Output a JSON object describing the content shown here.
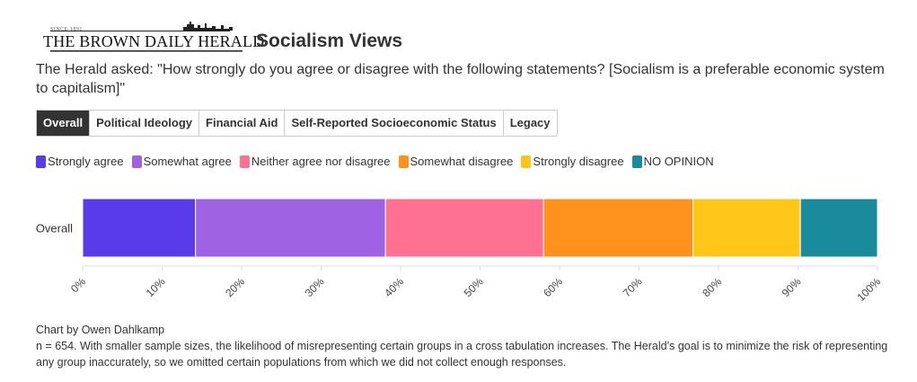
{
  "header": {
    "logo_since": "SINCE 1891",
    "logo_text": "THE BROWN DAILY HERALD",
    "title": "Socialism Views"
  },
  "subtitle": "The Herald asked: \"How strongly do you agree or disagree with the following statements? [Socialism is a preferable economic system to capitalism]\"",
  "tabs": [
    {
      "label": "Overall",
      "active": true
    },
    {
      "label": "Political Ideology",
      "active": false
    },
    {
      "label": "Financial Aid",
      "active": false
    },
    {
      "label": "Self-Reported Socioeconomic Status",
      "active": false
    },
    {
      "label": "Legacy",
      "active": false
    }
  ],
  "chart_data": {
    "type": "bar",
    "orientation": "horizontal",
    "stacked": true,
    "categories": [
      "Overall"
    ],
    "series": [
      {
        "name": "Strongly agree",
        "values": [
          14.2
        ],
        "color": "#5a3bea"
      },
      {
        "name": "Somewhat agree",
        "values": [
          23.9
        ],
        "color": "#9e62e3"
      },
      {
        "name": "Neither agree nor disagree",
        "values": [
          19.9
        ],
        "color": "#ff7190"
      },
      {
        "name": "Somewhat disagree",
        "values": [
          18.8
        ],
        "color": "#ff921c"
      },
      {
        "name": "Strongly disagree",
        "values": [
          13.5
        ],
        "color": "#ffc61a"
      },
      {
        "name": "NO OPINION",
        "values": [
          9.7
        ],
        "color": "#1a8b9b"
      }
    ],
    "xlim": [
      0,
      100
    ],
    "x_ticks": [
      "0%",
      "10%",
      "20%",
      "30%",
      "40%",
      "50%",
      "60%",
      "70%",
      "80%",
      "90%",
      "100%"
    ],
    "legend_position": "top-left",
    "grid": false
  },
  "footer": {
    "credit": "Chart by Owen Dahlkamp",
    "note": "n = 654. With smaller sample sizes, the likelihood of misrepresenting certain groups in a cross tabulation increases. The Herald’s goal is to minimize the risk of representing any group inaccurately, so we omitted certain populations from which we did not collect enough responses."
  }
}
